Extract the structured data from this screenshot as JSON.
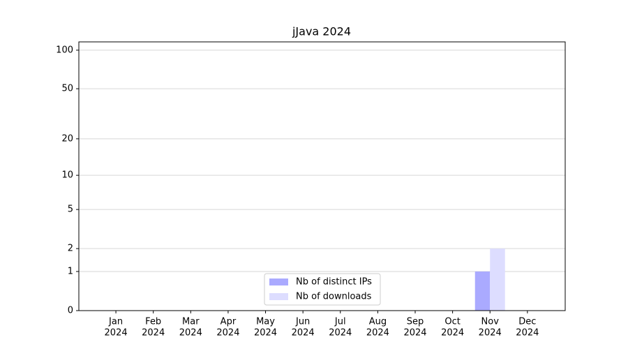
{
  "chart_data": {
    "type": "bar",
    "title": "jJava 2024",
    "categories": [
      [
        "Jan",
        "2024"
      ],
      [
        "Feb",
        "2024"
      ],
      [
        "Mar",
        "2024"
      ],
      [
        "Apr",
        "2024"
      ],
      [
        "May",
        "2024"
      ],
      [
        "Jun",
        "2024"
      ],
      [
        "Jul",
        "2024"
      ],
      [
        "Aug",
        "2024"
      ],
      [
        "Sep",
        "2024"
      ],
      [
        "Oct",
        "2024"
      ],
      [
        "Nov",
        "2024"
      ],
      [
        "Dec",
        "2024"
      ]
    ],
    "series": [
      {
        "name": "Nb of distinct IPs",
        "color": "#aaaaff",
        "values": [
          0,
          0,
          0,
          0,
          0,
          0,
          0,
          0,
          0,
          0,
          1,
          0
        ]
      },
      {
        "name": "Nb of downloads",
        "color": "#ddddff",
        "values": [
          0,
          0,
          0,
          0,
          0,
          0,
          0,
          0,
          0,
          0,
          2,
          0
        ]
      }
    ],
    "yscale": "log1p",
    "ylim": [
      0,
      116
    ],
    "yticks": [
      0,
      1,
      2,
      5,
      10,
      20,
      50,
      100
    ],
    "grid": true,
    "legend": "lower center"
  }
}
